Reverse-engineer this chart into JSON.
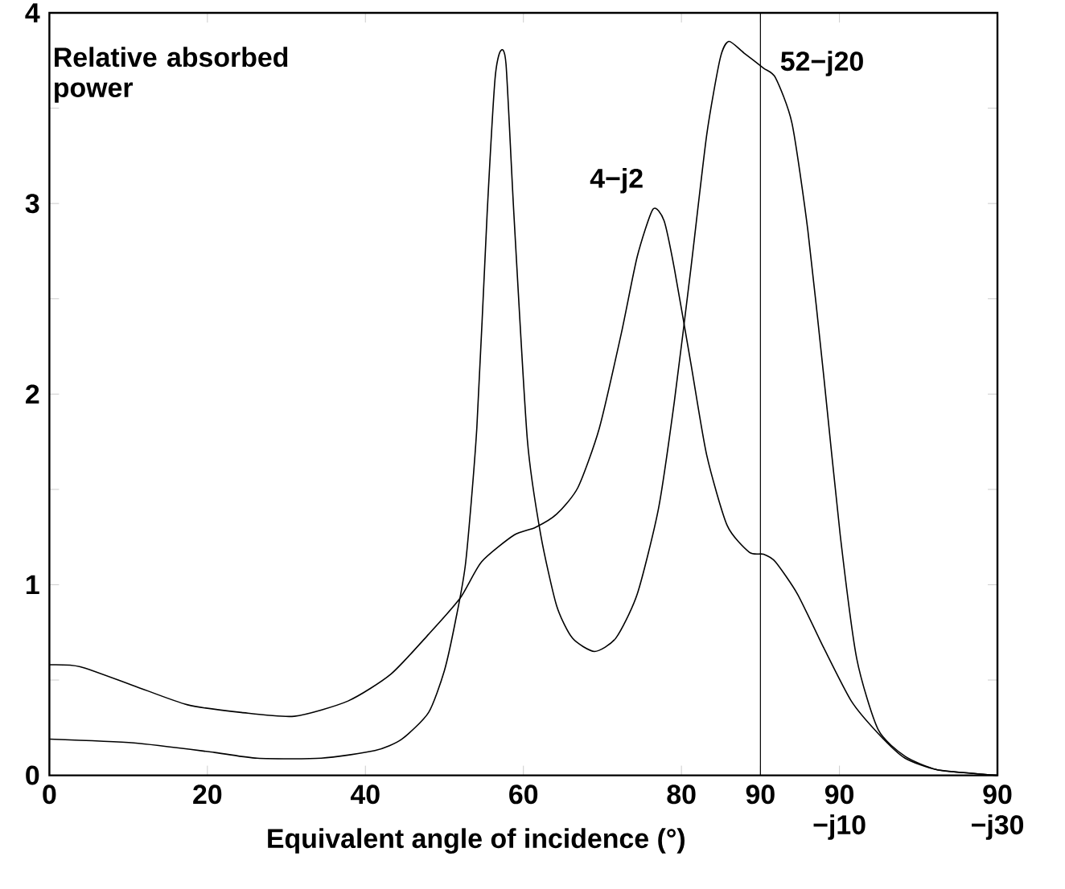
{
  "chart_data": {
    "type": "line",
    "xlabel": "Equivalent angle of incidence (°)",
    "ylabel": "Relative absorbed power",
    "xlim": [
      0,
      120
    ],
    "ylim": [
      0,
      4
    ],
    "xticks": [
      0,
      20,
      40,
      60,
      80,
      {
        "value": 90,
        "label": "90"
      },
      {
        "value": 100,
        "label": "90 −j10"
      },
      {
        "value": 120,
        "label": "90 −j30"
      }
    ],
    "yticks": [
      0,
      {
        "value": 0.5,
        "label": null
      },
      1,
      {
        "value": 1.5,
        "label": null
      },
      2,
      {
        "value": 2.5,
        "label": null
      },
      3,
      {
        "value": 3.5,
        "label": null
      },
      4
    ],
    "ref_lines": [
      {
        "axis": "x",
        "value": 90,
        "color": "#000000"
      }
    ],
    "series": [
      {
        "name": "52−j20",
        "color": "#000000",
        "x": [
          0,
          10.7,
          20.9,
          26.3,
          34.4,
          41.2,
          44.6,
          48,
          50,
          51.4,
          52.7,
          54.1,
          55.4,
          56.4,
          57.1,
          57.8,
          58.8,
          60.5,
          62.2,
          64.2,
          66.2,
          69,
          71.7,
          74.4,
          77.1,
          79.1,
          81.2,
          83.2,
          84.9,
          86,
          87.9,
          90.4,
          91.9,
          94,
          96,
          98,
          100.1,
          102.2,
          104.9,
          108.3,
          112.3,
          117,
          120
        ],
        "values": [
          0.19,
          0.17,
          0.12,
          0.09,
          0.09,
          0.13,
          0.19,
          0.33,
          0.55,
          0.81,
          1.12,
          1.82,
          2.94,
          3.65,
          3.8,
          3.73,
          2.94,
          1.76,
          1.26,
          0.89,
          0.72,
          0.65,
          0.72,
          0.95,
          1.4,
          1.96,
          2.66,
          3.36,
          3.76,
          3.85,
          3.79,
          3.71,
          3.66,
          3.42,
          2.86,
          2.1,
          1.26,
          0.61,
          0.24,
          0.1,
          0.03,
          0.01,
          0
        ]
      },
      {
        "name": "4−j2",
        "color": "#000000",
        "x": [
          0,
          3.9,
          10.7,
          17.5,
          24.3,
          31,
          37.8,
          43.2,
          48,
          52,
          54.7,
          58.8,
          61.5,
          64.2,
          66.9,
          69.6,
          72.4,
          74.4,
          76.4,
          77.8,
          79.1,
          81.2,
          83.2,
          85.8,
          88.6,
          90.4,
          91.9,
          94.7,
          98,
          101.5,
          104.9,
          108.3,
          112.3,
          117,
          120
        ],
        "values": [
          0.58,
          0.57,
          0.47,
          0.37,
          0.33,
          0.31,
          0.39,
          0.53,
          0.74,
          0.93,
          1.12,
          1.26,
          1.3,
          1.37,
          1.51,
          1.82,
          2.32,
          2.72,
          2.97,
          2.91,
          2.66,
          2.16,
          1.68,
          1.31,
          1.17,
          1.16,
          1.12,
          0.95,
          0.67,
          0.39,
          0.22,
          0.09,
          0.03,
          0.01,
          0
        ]
      }
    ]
  }
}
